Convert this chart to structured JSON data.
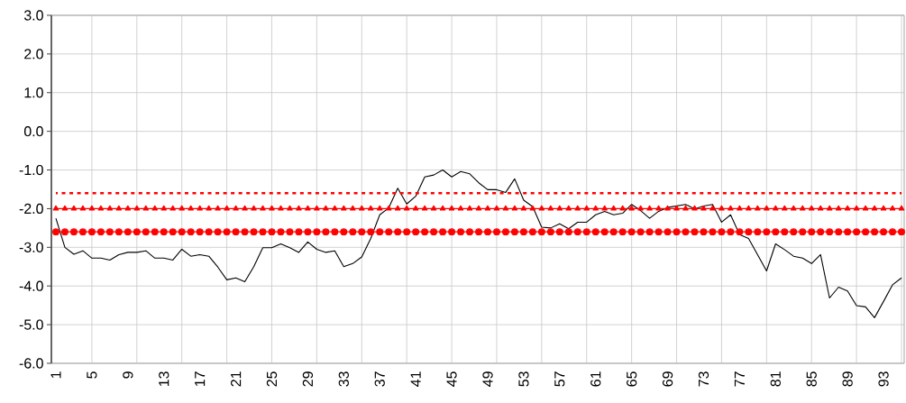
{
  "chart_data": {
    "type": "line",
    "categories": [
      "1",
      null,
      null,
      null,
      "5",
      null,
      null,
      null,
      "9",
      null,
      null,
      null,
      "13",
      null,
      null,
      null,
      "17",
      null,
      null,
      null,
      "21",
      null,
      null,
      null,
      "25",
      null,
      null,
      null,
      "29",
      null,
      null,
      null,
      "33",
      null,
      null,
      null,
      "37",
      null,
      null,
      null,
      "41",
      null,
      null,
      null,
      "45",
      null,
      null,
      null,
      "49",
      null,
      null,
      null,
      "53",
      null,
      null,
      null,
      "57",
      null,
      null,
      null,
      "61",
      null,
      null,
      null,
      "65",
      null,
      null,
      null,
      "69",
      null,
      null,
      null,
      "73",
      null,
      null,
      null,
      "77",
      null,
      null,
      null,
      "81",
      null,
      null,
      null,
      "85",
      null,
      null,
      null,
      "89",
      null,
      null,
      null,
      "93",
      null,
      null
    ],
    "series": [
      {
        "color": "#000000",
        "marker": "none",
        "line_style": "solid",
        "values": [
          -2.25,
          -3.0,
          -3.18,
          -3.09,
          -3.28,
          -3.28,
          -3.33,
          -3.19,
          -3.13,
          -3.13,
          -3.09,
          -3.28,
          -3.28,
          -3.33,
          -3.05,
          -3.23,
          -3.19,
          -3.23,
          -3.51,
          -3.84,
          -3.79,
          -3.89,
          -3.5,
          -3.01,
          -3.01,
          -2.91,
          -3.01,
          -3.13,
          -2.86,
          -3.05,
          -3.13,
          -3.09,
          -3.5,
          -3.42,
          -3.25,
          -2.77,
          -2.16,
          -1.98,
          -1.47,
          -1.88,
          -1.68,
          -1.18,
          -1.13,
          -1.0,
          -1.18,
          -1.04,
          -1.1,
          -1.33,
          -1.51,
          -1.51,
          -1.58,
          -1.23,
          -1.78,
          -1.95,
          -2.48,
          -2.5,
          -2.39,
          -2.52,
          -2.35,
          -2.35,
          -2.16,
          -2.07,
          -2.16,
          -2.12,
          -1.89,
          -2.05,
          -2.25,
          -2.07,
          -1.97,
          -1.93,
          -1.89,
          -2.01,
          -1.93,
          -1.89,
          -2.35,
          -2.16,
          -2.67,
          -2.77,
          -3.19,
          -3.61,
          -2.91,
          -3.06,
          -3.23,
          -3.28,
          -3.42,
          -3.19,
          -4.31,
          -4.03,
          -4.13,
          -4.51,
          -4.54,
          -4.82,
          -4.4,
          -3.97,
          -3.79
        ]
      },
      {
        "color": "#ff0000",
        "marker": "none",
        "line_style": "dotted",
        "values": [
          -1.6,
          -1.6,
          -1.6,
          -1.6,
          -1.6,
          -1.6,
          -1.6,
          -1.6,
          -1.6,
          -1.6,
          -1.6,
          -1.6,
          -1.6,
          -1.6,
          -1.6,
          -1.6,
          -1.6,
          -1.6,
          -1.6,
          -1.6,
          -1.6,
          -1.6,
          -1.6,
          -1.6,
          -1.6,
          -1.6,
          -1.6,
          -1.6,
          -1.6,
          -1.6,
          -1.6,
          -1.6,
          -1.6,
          -1.6,
          -1.6,
          -1.6,
          -1.6,
          -1.6,
          -1.6,
          -1.6,
          -1.6,
          -1.6,
          -1.6,
          -1.6,
          -1.6,
          -1.6,
          -1.6,
          -1.6,
          -1.6,
          -1.6,
          -1.6,
          -1.6,
          -1.6,
          -1.6,
          -1.6,
          -1.6,
          -1.6,
          -1.6,
          -1.6,
          -1.6,
          -1.6,
          -1.6,
          -1.6,
          -1.6,
          -1.6,
          -1.6,
          -1.6,
          -1.6,
          -1.6,
          -1.6,
          -1.6,
          -1.6,
          -1.6,
          -1.6,
          -1.6,
          -1.6,
          -1.6,
          -1.6,
          -1.6,
          -1.6,
          -1.6,
          -1.6,
          -1.6,
          -1.6,
          -1.6,
          -1.6,
          -1.6,
          -1.6,
          -1.6,
          -1.6,
          -1.6,
          -1.6,
          -1.6,
          -1.6,
          -1.6
        ]
      },
      {
        "color": "#ff0000",
        "marker": "triangle",
        "line_style": "solid",
        "values": [
          -2.0,
          -2.0,
          -2.0,
          -2.0,
          -2.0,
          -2.0,
          -2.0,
          -2.0,
          -2.0,
          -2.0,
          -2.0,
          -2.0,
          -2.0,
          -2.0,
          -2.0,
          -2.0,
          -2.0,
          -2.0,
          -2.0,
          -2.0,
          -2.0,
          -2.0,
          -2.0,
          -2.0,
          -2.0,
          -2.0,
          -2.0,
          -2.0,
          -2.0,
          -2.0,
          -2.0,
          -2.0,
          -2.0,
          -2.0,
          -2.0,
          -2.0,
          -2.0,
          -2.0,
          -2.0,
          -2.0,
          -2.0,
          -2.0,
          -2.0,
          -2.0,
          -2.0,
          -2.0,
          -2.0,
          -2.0,
          -2.0,
          -2.0,
          -2.0,
          -2.0,
          -2.0,
          -2.0,
          -2.0,
          -2.0,
          -2.0,
          -2.0,
          -2.0,
          -2.0,
          -2.0,
          -2.0,
          -2.0,
          -2.0,
          -2.0,
          -2.0,
          -2.0,
          -2.0,
          -2.0,
          -2.0,
          -2.0,
          -2.0,
          -2.0,
          -2.0,
          -2.0,
          -2.0,
          -2.0,
          -2.0,
          -2.0,
          -2.0,
          -2.0,
          -2.0,
          -2.0,
          -2.0,
          -2.0,
          -2.0,
          -2.0,
          -2.0,
          -2.0,
          -2.0,
          -2.0,
          -2.0,
          -2.0,
          -2.0,
          -2.0
        ]
      },
      {
        "color": "#ff0000",
        "marker": "circle",
        "line_style": "solid",
        "values": [
          -2.6,
          -2.6,
          -2.6,
          -2.6,
          -2.6,
          -2.6,
          -2.6,
          -2.6,
          -2.6,
          -2.6,
          -2.6,
          -2.6,
          -2.6,
          -2.6,
          -2.6,
          -2.6,
          -2.6,
          -2.6,
          -2.6,
          -2.6,
          -2.6,
          -2.6,
          -2.6,
          -2.6,
          -2.6,
          -2.6,
          -2.6,
          -2.6,
          -2.6,
          -2.6,
          -2.6,
          -2.6,
          -2.6,
          -2.6,
          -2.6,
          -2.6,
          -2.6,
          -2.6,
          -2.6,
          -2.6,
          -2.6,
          -2.6,
          -2.6,
          -2.6,
          -2.6,
          -2.6,
          -2.6,
          -2.6,
          -2.6,
          -2.6,
          -2.6,
          -2.6,
          -2.6,
          -2.6,
          -2.6,
          -2.6,
          -2.6,
          -2.6,
          -2.6,
          -2.6,
          -2.6,
          -2.6,
          -2.6,
          -2.6,
          -2.6,
          -2.6,
          -2.6,
          -2.6,
          -2.6,
          -2.6,
          -2.6,
          -2.6,
          -2.6,
          -2.6,
          -2.6,
          -2.6,
          -2.6,
          -2.6,
          -2.6,
          -2.6,
          -2.6,
          -2.6,
          -2.6,
          -2.6,
          -2.6,
          -2.6,
          -2.6,
          -2.6,
          -2.6,
          -2.6,
          -2.6,
          -2.6,
          -2.6,
          -2.6,
          -2.6
        ]
      }
    ],
    "ylim": [
      -6.0,
      3.0
    ],
    "yticks": [
      {
        "value": -6,
        "label": "-6.0"
      },
      {
        "value": -5,
        "label": "-5.0"
      },
      {
        "value": -4,
        "label": "-4.0"
      },
      {
        "value": -3,
        "label": "-3.0"
      },
      {
        "value": -2,
        "label": "-2.0"
      },
      {
        "value": -1,
        "label": "-1.0"
      },
      {
        "value": 0,
        "label": "0.0"
      },
      {
        "value": 1,
        "label": "1.0"
      },
      {
        "value": 2,
        "label": "2.0"
      },
      {
        "value": 3,
        "label": "3.0"
      }
    ],
    "grid": true
  }
}
